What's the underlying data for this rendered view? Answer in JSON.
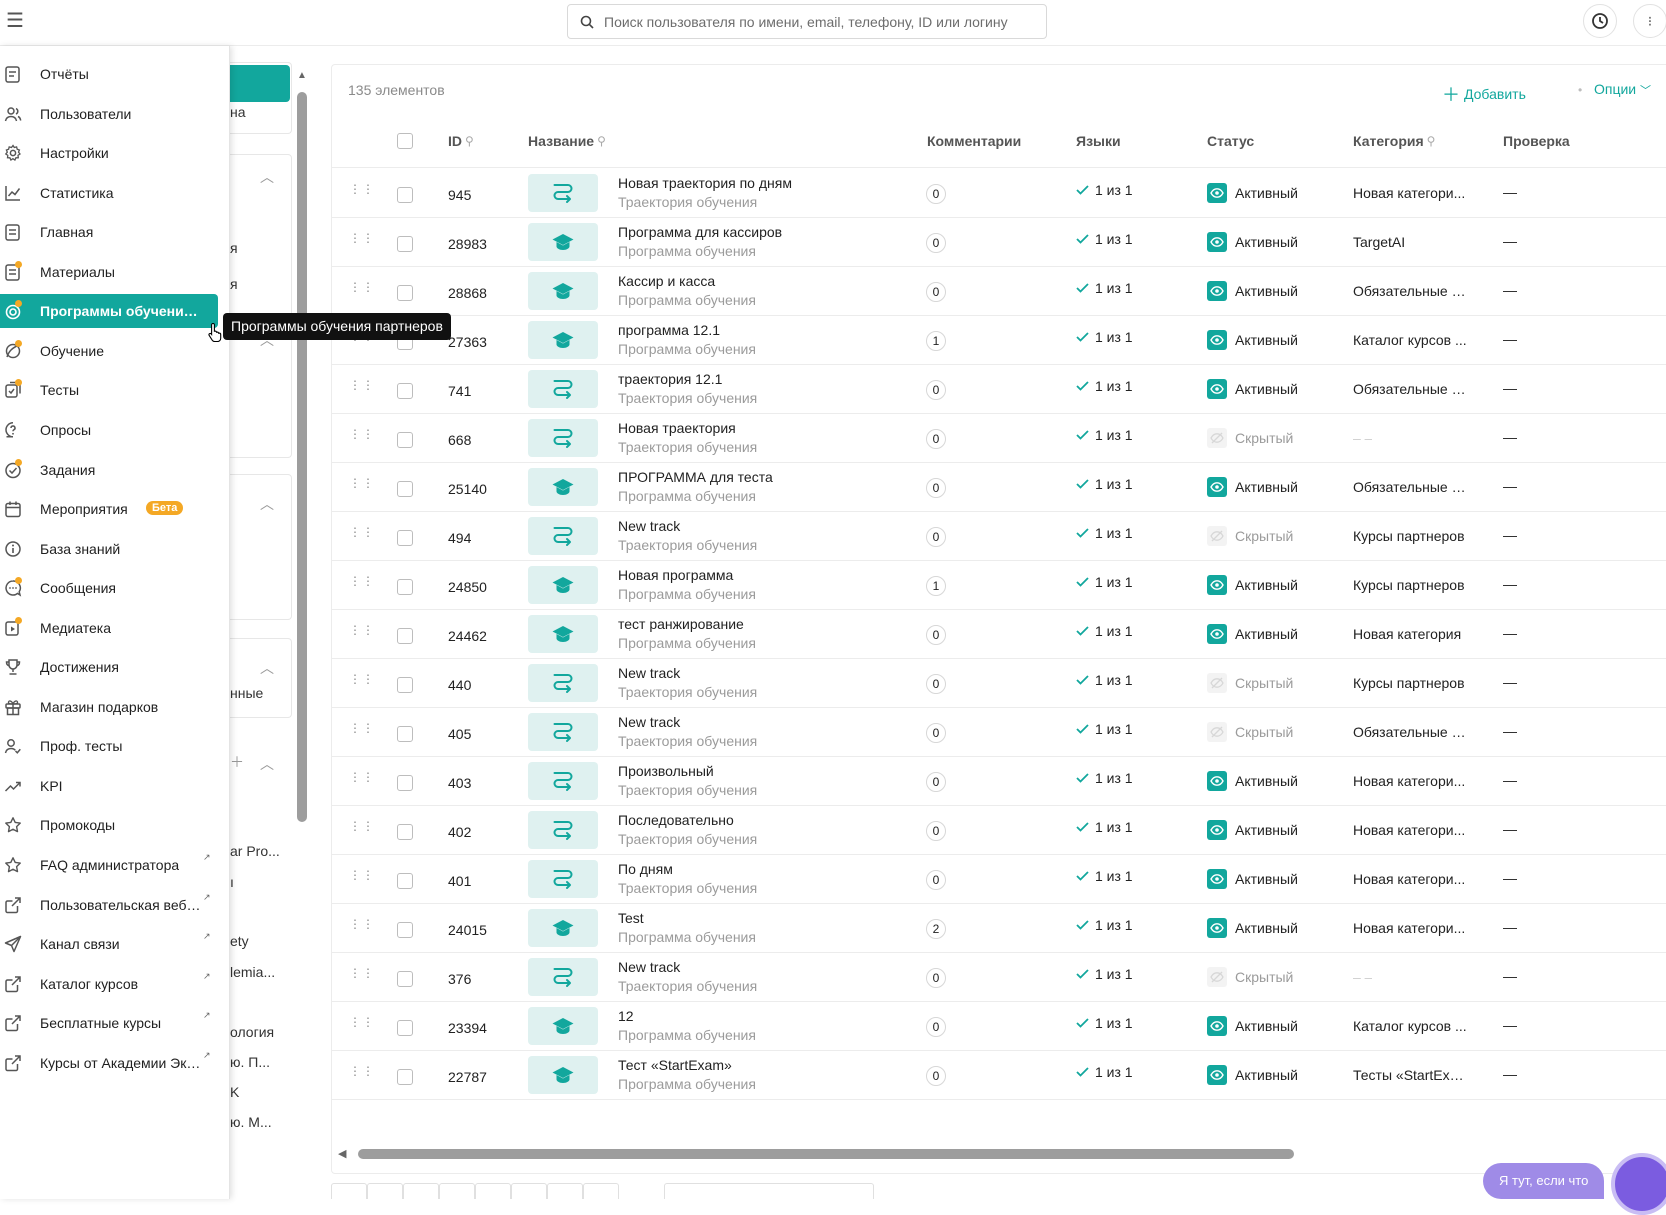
{
  "topbar": {
    "search_placeholder": "Поиск пользователя по имени, email, телефону, ID или логину",
    "more_label": "⁝"
  },
  "sidebar": {
    "items": [
      {
        "label": "Отчёты",
        "icon": "report-icon"
      },
      {
        "label": "Пользователи",
        "icon": "users-icon"
      },
      {
        "label": "Настройки",
        "icon": "gear-icon"
      },
      {
        "label": "Статистика",
        "icon": "chart-icon"
      },
      {
        "label": "Главная",
        "icon": "home-icon"
      },
      {
        "label": "Материалы",
        "icon": "materials-icon",
        "dot": true
      },
      {
        "label": "Программы обучения партнеров",
        "icon": "program-icon",
        "dot": true,
        "active": true
      },
      {
        "label": "Обучение",
        "icon": "learning-icon",
        "dot": true
      },
      {
        "label": "Тесты",
        "icon": "tests-icon",
        "dot": true
      },
      {
        "label": "Опросы",
        "icon": "survey-icon"
      },
      {
        "label": "Задания",
        "icon": "tasks-icon",
        "dot": true
      },
      {
        "label": "Мероприятия",
        "icon": "calendar-icon",
        "badge": "Бета"
      },
      {
        "label": "База знаний",
        "icon": "info-icon"
      },
      {
        "label": "Сообщения",
        "icon": "messages-icon",
        "dot": true
      },
      {
        "label": "Медиатека",
        "icon": "media-icon",
        "dot": true
      },
      {
        "label": "Достижения",
        "icon": "trophy-icon"
      },
      {
        "label": "Магазин подарков",
        "icon": "gift-icon"
      },
      {
        "label": "Проф. тесты",
        "icon": "prof-tests-icon"
      },
      {
        "label": "KPI",
        "icon": "kpi-icon"
      },
      {
        "label": "Промокоды",
        "icon": "star-icon"
      },
      {
        "label": "FAQ администратора",
        "icon": "star-icon",
        "external": true
      },
      {
        "label": "Пользовательская веб-версия",
        "icon": "external-link-icon",
        "external": true
      },
      {
        "label": "Канал связи",
        "icon": "send-icon",
        "external": true
      },
      {
        "label": "Каталог курсов",
        "icon": "external-link-icon",
        "external": true
      },
      {
        "label": "Бесплатные курсы",
        "icon": "external-link-icon",
        "external": true
      },
      {
        "label": "Курсы от Академии Эквиума",
        "icon": "external-link-icon",
        "external": true
      }
    ],
    "tooltip": "Программы обучения партнеров"
  },
  "midpanel": {
    "texts": [
      "на",
      "я",
      "я",
      "нные",
      "ar Pro...",
      "ı",
      "ety",
      "lemia...",
      "ология",
      "ю. П...",
      "K",
      "ю. М..."
    ]
  },
  "table": {
    "count": "135 элементов",
    "add_label": "Добавить",
    "options_label": "Опции",
    "columns": {
      "id": "ID",
      "name": "Название",
      "comments": "Комментарии",
      "languages": "Языки",
      "status": "Статус",
      "category": "Категория",
      "review": "Проверка"
    },
    "rows": [
      {
        "id": "945",
        "name": "Новая траектория по дням",
        "type": "Траектория обучения",
        "icon": "route",
        "comments": "0",
        "langs": "1 из 1",
        "status": "Активный",
        "category": "Новая категори...",
        "review": "—"
      },
      {
        "id": "28983",
        "name": "Программа для кассиров",
        "type": "Программа обучения",
        "icon": "cap",
        "comments": "0",
        "langs": "1 из 1",
        "status": "Активный",
        "category": "TargetAI",
        "review": "—"
      },
      {
        "id": "28868",
        "name": "Кассир и касса",
        "type": "Программа обучения",
        "icon": "cap",
        "comments": "0",
        "langs": "1 из 1",
        "status": "Активный",
        "category": "Обязательные к...",
        "review": "—"
      },
      {
        "id": "27363",
        "name": "программа 12.1",
        "type": "Программа обучения",
        "icon": "cap",
        "comments": "1",
        "langs": "1 из 1",
        "status": "Активный",
        "category": "Каталог курсов ...",
        "review": "—"
      },
      {
        "id": "741",
        "name": "траектория 12.1",
        "type": "Траектория обучения",
        "icon": "route",
        "comments": "0",
        "langs": "1 из 1",
        "status": "Активный",
        "category": "Обязательные к...",
        "review": "—"
      },
      {
        "id": "668",
        "name": "Новая траектория",
        "type": "Траектория обучения",
        "icon": "route",
        "comments": "0",
        "langs": "1 из 1",
        "status": "Скрытый",
        "category": "– –",
        "review": "—"
      },
      {
        "id": "25140",
        "name": "ПРОГРАММА для теста",
        "type": "Программа обучения",
        "icon": "cap",
        "comments": "0",
        "langs": "1 из 1",
        "status": "Активный",
        "category": "Обязательные к...",
        "review": "—"
      },
      {
        "id": "494",
        "name": "New track",
        "type": "Траектория обучения",
        "icon": "route",
        "comments": "0",
        "langs": "1 из 1",
        "status": "Скрытый",
        "category": "Курсы партнеров",
        "review": "—"
      },
      {
        "id": "24850",
        "name": "Новая программа",
        "type": "Программа обучения",
        "icon": "cap",
        "comments": "1",
        "langs": "1 из 1",
        "status": "Активный",
        "category": "Курсы партнеров",
        "review": "—"
      },
      {
        "id": "24462",
        "name": "тест ранжирование",
        "type": "Программа обучения",
        "icon": "cap",
        "comments": "0",
        "langs": "1 из 1",
        "status": "Активный",
        "category": "Новая категория",
        "review": "—"
      },
      {
        "id": "440",
        "name": "New track",
        "type": "Траектория обучения",
        "icon": "route",
        "comments": "0",
        "langs": "1 из 1",
        "status": "Скрытый",
        "category": "Курсы партнеров",
        "review": "—"
      },
      {
        "id": "405",
        "name": "New track",
        "type": "Траектория обучения",
        "icon": "route",
        "comments": "0",
        "langs": "1 из 1",
        "status": "Скрытый",
        "category": "Обязательные к...",
        "review": "—"
      },
      {
        "id": "403",
        "name": "Произвольный",
        "type": "Траектория обучения",
        "icon": "route",
        "comments": "0",
        "langs": "1 из 1",
        "status": "Активный",
        "category": "Новая категори...",
        "review": "—"
      },
      {
        "id": "402",
        "name": "Последовательно",
        "type": "Траектория обучения",
        "icon": "route",
        "comments": "0",
        "langs": "1 из 1",
        "status": "Активный",
        "category": "Новая категори...",
        "review": "—"
      },
      {
        "id": "401",
        "name": "По дням",
        "type": "Траектория обучения",
        "icon": "route",
        "comments": "0",
        "langs": "1 из 1",
        "status": "Активный",
        "category": "Новая категори...",
        "review": "—"
      },
      {
        "id": "24015",
        "name": "Test",
        "type": "Программа обучения",
        "icon": "cap",
        "comments": "2",
        "langs": "1 из 1",
        "status": "Активный",
        "category": "Новая категори...",
        "review": "—"
      },
      {
        "id": "376",
        "name": "New track",
        "type": "Траектория обучения",
        "icon": "route",
        "comments": "0",
        "langs": "1 из 1",
        "status": "Скрытый",
        "category": "– –",
        "review": "—"
      },
      {
        "id": "23394",
        "name": "12",
        "type": "Программа обучения",
        "icon": "cap",
        "comments": "0",
        "langs": "1 из 1",
        "status": "Активный",
        "category": "Каталог курсов ...",
        "review": "—"
      },
      {
        "id": "22787",
        "name": "Тест «StartExam»",
        "type": "Программа обучения",
        "icon": "cap",
        "comments": "0",
        "langs": "1 из 1",
        "status": "Активный",
        "category": "Тесты «StartExa...",
        "review": "—"
      }
    ]
  },
  "helper": {
    "label": "Я тут, если что"
  },
  "colors": {
    "accent": "#12a79d",
    "accent_light": "#dff1f0",
    "badge": "#f4a825",
    "chat": "#7b5ce0"
  }
}
